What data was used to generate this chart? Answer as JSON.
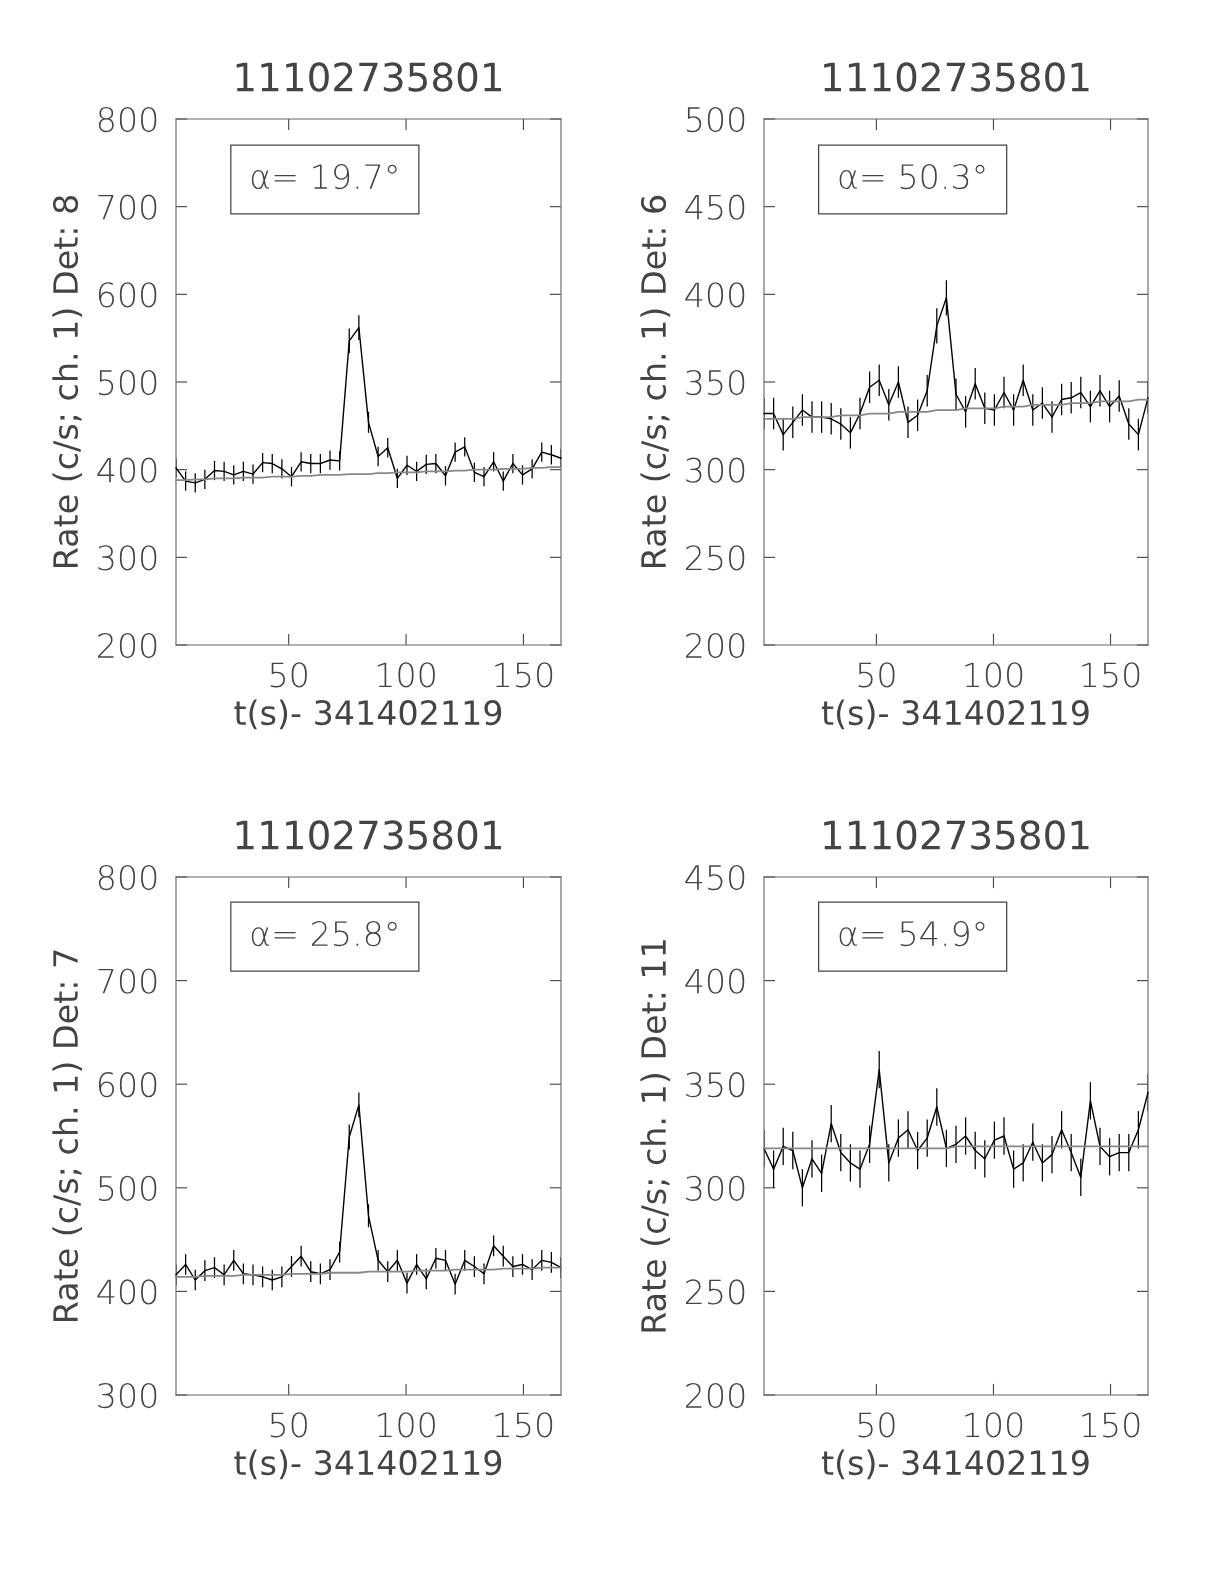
{
  "chart_data": [
    {
      "type": "line",
      "title": "11102735801",
      "xlabel": "t(s)- 341402119",
      "ylabel": "Rate (c/s; ch. 1) Det: 8",
      "annotations": [
        "α= 19.7°"
      ],
      "x": [
        2,
        6.1,
        10.2,
        14.3,
        18.4,
        22.5,
        26.6,
        30.7,
        34.8,
        38.9,
        43,
        47.1,
        51.2,
        55.3,
        59.4,
        63.5,
        67.6,
        71.7,
        75.8,
        79.9,
        84,
        88.1,
        92.2,
        96.3,
        100.4,
        104.5,
        108.6,
        112.7,
        116.8,
        120.9,
        125,
        129.1,
        133.2,
        137.3,
        141.4,
        145.5,
        149.6,
        153.7,
        157.8,
        161.9,
        166
      ],
      "series": [
        {
          "color": "#000000",
          "values": [
            402,
            387,
            385,
            389,
            399,
            398,
            394,
            398,
            395,
            408,
            407,
            401,
            392,
            409,
            407,
            407,
            411,
            410,
            547,
            562,
            454,
            415,
            425,
            390,
            405,
            398,
            406,
            407,
            393,
            420,
            426,
            397,
            392,
            409,
            387,
            407,
            394,
            401,
            420,
            417,
            413
          ],
          "errors": [
            11,
            11,
            11,
            11,
            11,
            11,
            11,
            11,
            11,
            11,
            11,
            11,
            11,
            11,
            11,
            11,
            11,
            11,
            14,
            14,
            12,
            11,
            11,
            11,
            11,
            11,
            11,
            11,
            11,
            11,
            11,
            11,
            11,
            11,
            11,
            11,
            11,
            11,
            11,
            11,
            11
          ]
        },
        {
          "type": "line",
          "color": "#888888",
          "values": [
            388,
            388,
            389,
            389,
            390,
            390,
            390,
            391,
            391,
            391,
            392,
            392,
            392,
            393,
            393,
            394,
            394,
            394,
            395,
            395,
            395,
            396,
            396,
            397,
            397,
            397,
            398,
            398,
            398,
            399,
            399,
            400,
            400,
            400,
            401,
            401,
            401,
            402,
            402,
            403,
            403
          ]
        }
      ],
      "xlim": [
        2,
        166
      ],
      "ylim": [
        200,
        800
      ],
      "xticks": [
        50,
        100,
        150
      ],
      "yticks": [
        200,
        300,
        400,
        500,
        600,
        700,
        800
      ],
      "grid": false,
      "legend": false,
      "marker": "none",
      "line_style": "solid"
    },
    {
      "type": "line",
      "title": "11102735801",
      "xlabel": "t(s)- 341402119",
      "ylabel": "Rate (c/s; ch. 1) Det: 6",
      "annotations": [
        "α= 50.3°"
      ],
      "x": [
        2,
        6.1,
        10.2,
        14.3,
        18.4,
        22.5,
        26.6,
        30.7,
        34.8,
        38.9,
        43,
        47.1,
        51.2,
        55.3,
        59.4,
        63.5,
        67.6,
        71.7,
        75.8,
        79.9,
        84,
        88.1,
        92.2,
        96.3,
        100.4,
        104.5,
        108.6,
        112.7,
        116.8,
        120.9,
        125,
        129.1,
        133.2,
        137.3,
        141.4,
        145.5,
        149.6,
        153.7,
        157.8,
        161.9,
        166
      ],
      "series": [
        {
          "color": "#000000",
          "values": [
            332,
            332,
            320,
            327,
            334,
            330,
            330,
            329,
            326,
            321,
            332,
            347,
            351,
            337,
            350,
            327,
            331,
            345,
            382,
            398,
            343,
            333,
            349,
            335,
            334,
            344,
            334,
            351,
            334,
            338,
            330,
            340,
            341,
            344,
            336,
            345,
            336,
            342,
            326,
            320,
            341
          ],
          "errors": [
            9,
            9,
            9,
            9,
            9,
            9,
            9,
            9,
            9,
            9,
            9,
            9,
            9,
            9,
            9,
            9,
            9,
            9,
            10,
            10,
            9,
            9,
            9,
            9,
            9,
            9,
            9,
            9,
            9,
            9,
            9,
            9,
            9,
            9,
            9,
            9,
            9,
            9,
            9,
            9,
            9
          ]
        },
        {
          "type": "line",
          "color": "#888888",
          "values": [
            329,
            329,
            329,
            329,
            330,
            330,
            330,
            330,
            331,
            331,
            331,
            332,
            332,
            332,
            333,
            333,
            333,
            333,
            334,
            334,
            334,
            335,
            335,
            335,
            335,
            336,
            336,
            336,
            337,
            337,
            337,
            337,
            338,
            338,
            338,
            339,
            339,
            339,
            339,
            340,
            340
          ]
        }
      ],
      "xlim": [
        2,
        166
      ],
      "ylim": [
        200,
        500
      ],
      "xticks": [
        50,
        100,
        150
      ],
      "yticks": [
        200,
        250,
        300,
        350,
        400,
        450,
        500
      ],
      "grid": false,
      "legend": false,
      "marker": "none",
      "line_style": "solid"
    },
    {
      "type": "line",
      "title": "11102735801",
      "xlabel": "t(s)- 341402119",
      "ylabel": "Rate (c/s; ch. 1) Det: 7",
      "annotations": [
        "α= 25.8°"
      ],
      "x": [
        2,
        6.1,
        10.2,
        14.3,
        18.4,
        22.5,
        26.6,
        30.7,
        34.8,
        38.9,
        43,
        47.1,
        51.2,
        55.3,
        59.4,
        63.5,
        67.6,
        71.7,
        75.8,
        79.9,
        84,
        88.1,
        92.2,
        96.3,
        100.4,
        104.5,
        108.6,
        112.7,
        116.8,
        120.9,
        125,
        129.1,
        133.2,
        137.3,
        141.4,
        145.5,
        149.6,
        153.7,
        157.8,
        161.9,
        166
      ],
      "series": [
        {
          "color": "#000000",
          "values": [
            416,
            426,
            411,
            420,
            423,
            416,
            430,
            417,
            416,
            414,
            411,
            414,
            424,
            434,
            419,
            417,
            421,
            438,
            549,
            580,
            473,
            430,
            419,
            430,
            408,
            426,
            412,
            432,
            430,
            407,
            430,
            424,
            417,
            444,
            434,
            424,
            426,
            421,
            430,
            428,
            423
          ],
          "errors": [
            10,
            10,
            10,
            10,
            10,
            10,
            10,
            10,
            10,
            10,
            10,
            10,
            10,
            10,
            10,
            10,
            10,
            10,
            12,
            12,
            11,
            10,
            10,
            10,
            10,
            10,
            10,
            10,
            10,
            10,
            10,
            10,
            10,
            10,
            10,
            10,
            10,
            10,
            10,
            10,
            10
          ]
        },
        {
          "type": "line",
          "color": "#888888",
          "values": [
            414,
            414,
            414,
            415,
            415,
            415,
            415,
            416,
            416,
            416,
            416,
            416,
            417,
            417,
            417,
            417,
            418,
            418,
            418,
            418,
            419,
            419,
            419,
            419,
            419,
            420,
            420,
            420,
            420,
            421,
            421,
            421,
            421,
            421,
            422,
            422,
            422,
            422,
            423,
            423,
            423
          ]
        }
      ],
      "xlim": [
        2,
        166
      ],
      "ylim": [
        300,
        800
      ],
      "xticks": [
        50,
        100,
        150
      ],
      "yticks": [
        300,
        400,
        500,
        600,
        700,
        800
      ],
      "grid": false,
      "legend": false,
      "marker": "none",
      "line_style": "solid"
    },
    {
      "type": "line",
      "title": "11102735801",
      "xlabel": "t(s)- 341402119",
      "ylabel": "Rate (c/s; ch. 1) Det: 11",
      "annotations": [
        "α= 54.9°"
      ],
      "x": [
        2,
        6.1,
        10.2,
        14.3,
        18.4,
        22.5,
        26.6,
        30.7,
        34.8,
        38.9,
        43,
        47.1,
        51.2,
        55.3,
        59.4,
        63.5,
        67.6,
        71.7,
        75.8,
        79.9,
        84,
        88.1,
        92.2,
        96.3,
        100.4,
        104.5,
        108.6,
        112.7,
        116.8,
        120.9,
        125,
        129.1,
        133.2,
        137.3,
        141.4,
        145.5,
        149.6,
        153.7,
        157.8,
        161.9,
        166
      ],
      "series": [
        {
          "color": "#000000",
          "values": [
            319,
            309,
            320,
            318,
            300,
            314,
            307,
            331,
            317,
            312,
            309,
            321,
            357,
            312,
            324,
            328,
            318,
            324,
            339,
            319,
            321,
            325,
            318,
            314,
            323,
            325,
            309,
            312,
            322,
            312,
            316,
            328,
            317,
            305,
            342,
            320,
            315,
            317,
            317,
            328,
            346
          ],
          "errors": [
            9,
            9,
            9,
            9,
            9,
            9,
            9,
            9,
            9,
            9,
            9,
            9,
            9,
            9,
            9,
            9,
            9,
            9,
            9,
            9,
            9,
            9,
            9,
            9,
            9,
            9,
            9,
            9,
            9,
            9,
            9,
            9,
            9,
            9,
            9,
            9,
            9,
            9,
            9,
            9,
            9
          ]
        },
        {
          "type": "line",
          "color": "#888888",
          "values": [
            319,
            319,
            319,
            319,
            319,
            319,
            319,
            319,
            319,
            319,
            319,
            319,
            319,
            319,
            319,
            319,
            319,
            319,
            319,
            319,
            320,
            320,
            320,
            320,
            320,
            320,
            320,
            320,
            320,
            320,
            320,
            320,
            320,
            320,
            320,
            320,
            320,
            320,
            320,
            320,
            320
          ]
        }
      ],
      "xlim": [
        2,
        166
      ],
      "ylim": [
        200,
        450
      ],
      "xticks": [
        50,
        100,
        150
      ],
      "yticks": [
        200,
        250,
        300,
        350,
        400,
        450
      ],
      "grid": false,
      "legend": false,
      "marker": "none",
      "line_style": "solid"
    }
  ]
}
